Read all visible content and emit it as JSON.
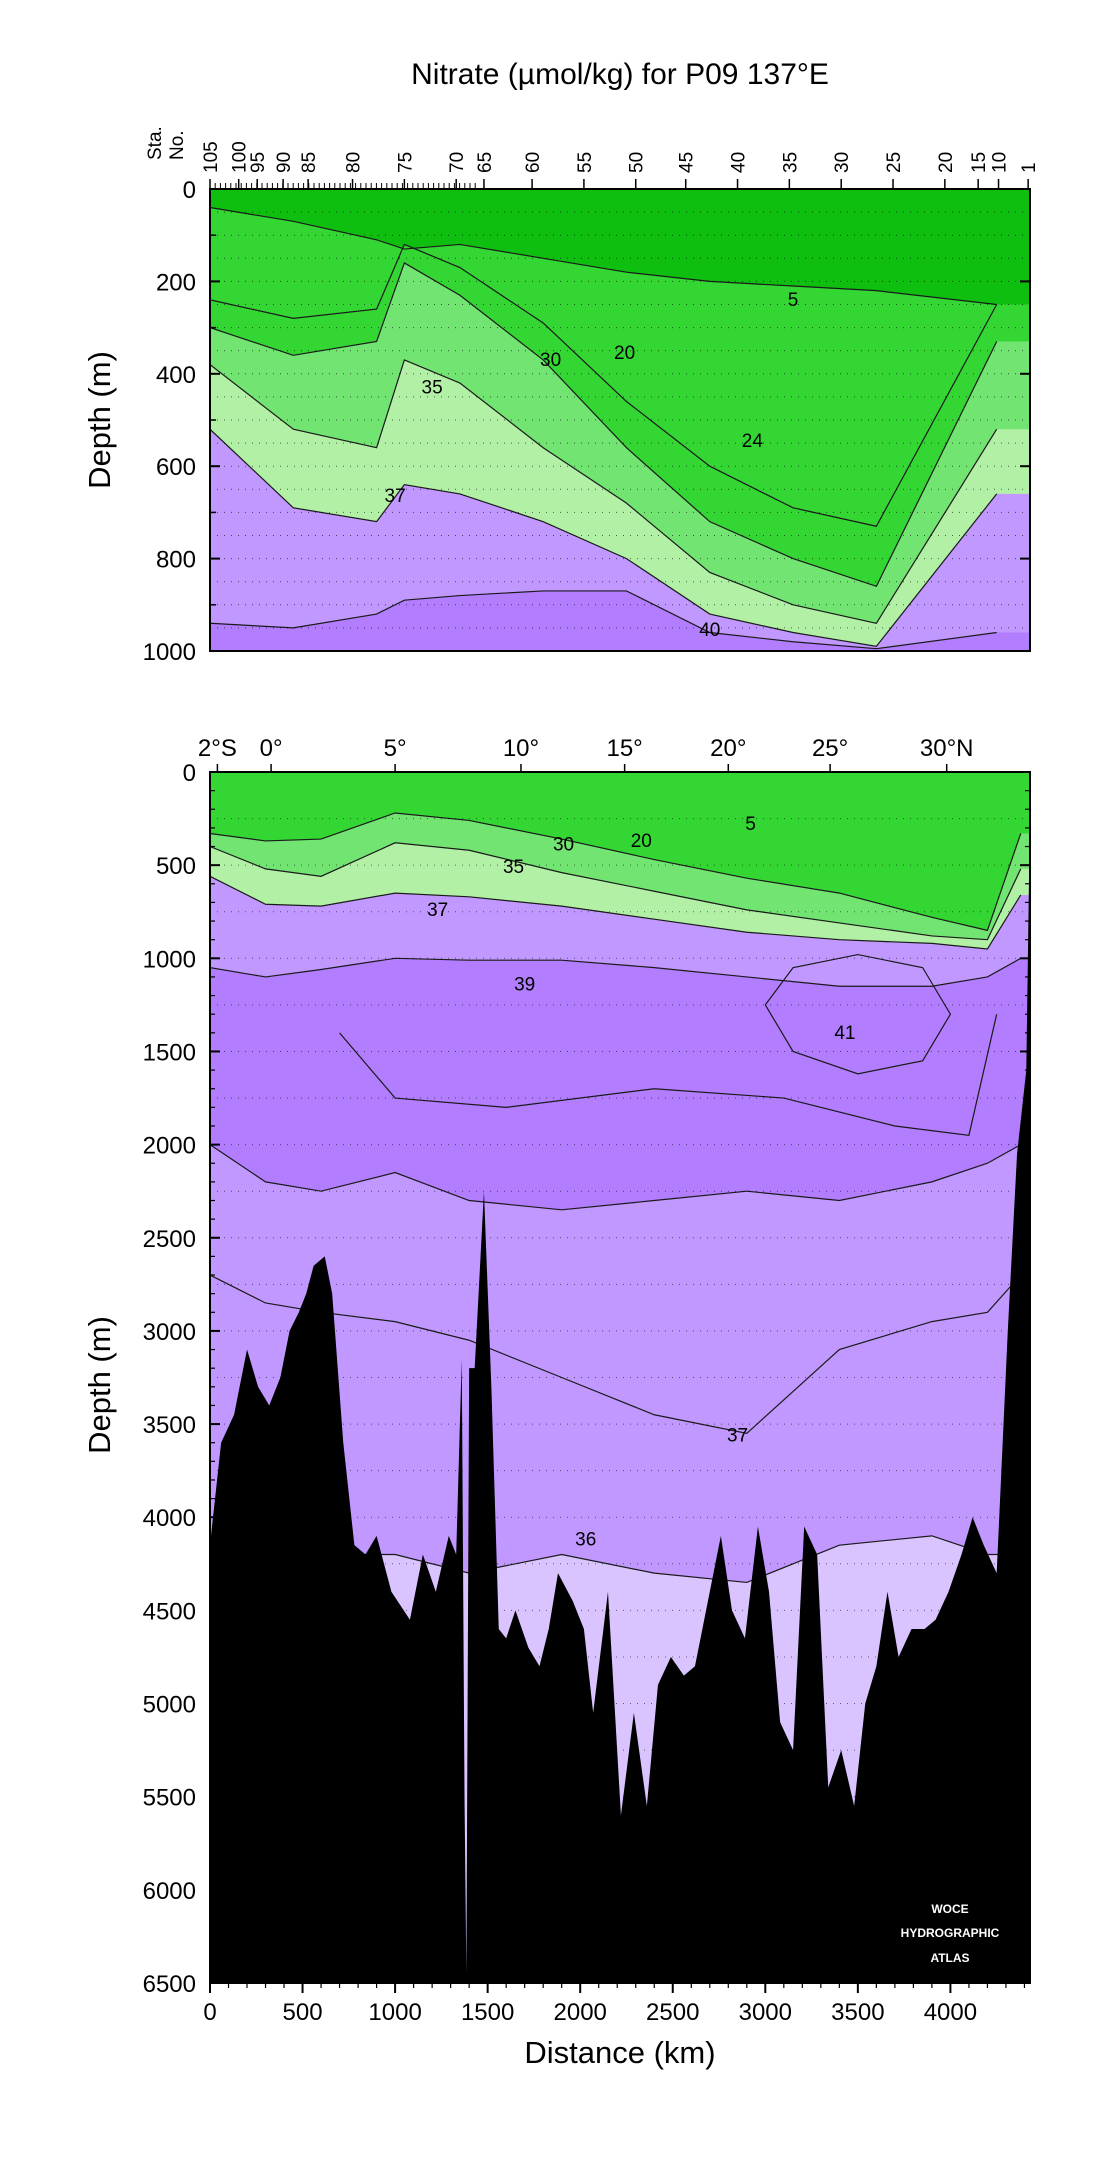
{
  "chart_data": [
    {
      "type": "heatmap",
      "title": "Nitrate (µmol/kg) for P09 137°E",
      "ylabel": "Depth (m)",
      "ylim": [
        1000,
        0
      ],
      "xlim": [
        0,
        4430
      ],
      "y_ticks": [
        "0",
        "200",
        "400",
        "600",
        "800",
        "1000"
      ],
      "station_axis_label": [
        "Sta.",
        "No."
      ],
      "station_ticks": [
        {
          "label": "105",
          "x": 0
        },
        {
          "label": "100",
          "x": 155
        },
        {
          "label": "95",
          "x": 255
        },
        {
          "label": "90",
          "x": 395
        },
        {
          "label": "85",
          "x": 530
        },
        {
          "label": "80",
          "x": 770
        },
        {
          "label": "75",
          "x": 1050
        },
        {
          "label": "70",
          "x": 1330
        },
        {
          "label": "65",
          "x": 1480
        },
        {
          "label": "60",
          "x": 1740
        },
        {
          "label": "55",
          "x": 2020
        },
        {
          "label": "50",
          "x": 2300
        },
        {
          "label": "45",
          "x": 2570
        },
        {
          "label": "40",
          "x": 2850
        },
        {
          "label": "35",
          "x": 3130
        },
        {
          "label": "30",
          "x": 3410
        },
        {
          "label": "25",
          "x": 3690
        },
        {
          "label": "20",
          "x": 3970
        },
        {
          "label": "15",
          "x": 4150
        },
        {
          "label": "10",
          "x": 4260
        },
        {
          "label": "1",
          "x": 4420
        }
      ],
      "contour_levels": [
        1,
        2,
        3,
        4,
        5,
        10,
        15,
        20,
        22,
        24,
        26,
        28,
        30,
        32,
        34,
        35,
        36,
        37,
        38,
        39,
        40,
        41,
        42
      ],
      "isolines": [
        {
          "value": 5,
          "depth": [
            40,
            70,
            110,
            130,
            120,
            150,
            180,
            200,
            210,
            220,
            250
          ]
        },
        {
          "value": 20,
          "depth": [
            240,
            280,
            260,
            120,
            170,
            290,
            460,
            600,
            690,
            730,
            250
          ]
        },
        {
          "value": 30,
          "depth": [
            300,
            360,
            330,
            160,
            230,
            370,
            560,
            720,
            800,
            860,
            330
          ]
        },
        {
          "value": 35,
          "depth": [
            380,
            520,
            560,
            370,
            420,
            560,
            680,
            830,
            900,
            940,
            520
          ]
        },
        {
          "value": 37,
          "depth": [
            520,
            690,
            720,
            640,
            660,
            720,
            800,
            920,
            960,
            990,
            660
          ]
        },
        {
          "value": 40,
          "depth": [
            940,
            950,
            920,
            890,
            880,
            870,
            870,
            960,
            980,
            995,
            960
          ]
        }
      ],
      "isoline_x": [
        0,
        450,
        900,
        1050,
        1350,
        1800,
        2250,
        2700,
        3150,
        3600,
        4250
      ],
      "contour_labels": [
        {
          "text": "5",
          "x": 3150,
          "depth": 240
        },
        {
          "text": "20",
          "x": 2240,
          "depth": 355
        },
        {
          "text": "30",
          "x": 1840,
          "depth": 370
        },
        {
          "text": "35",
          "x": 1200,
          "depth": 430
        },
        {
          "text": "24",
          "x": 2930,
          "depth": 545
        },
        {
          "text": "37",
          "x": 1000,
          "depth": 665
        },
        {
          "text": "40",
          "x": 2700,
          "depth": 955
        }
      ]
    },
    {
      "type": "heatmap",
      "xlabel": "Distance (km)",
      "ylabel": "Depth (m)",
      "xlim": [
        0,
        4430
      ],
      "ylim": [
        6500,
        0
      ],
      "x_ticks": [
        "0",
        "500",
        "1000",
        "1500",
        "2000",
        "2500",
        "3000",
        "3500",
        "4000"
      ],
      "y_ticks": [
        "0",
        "500",
        "1000",
        "1500",
        "2000",
        "2500",
        "3000",
        "3500",
        "4000",
        "4500",
        "5000",
        "5500",
        "6000",
        "6500"
      ],
      "lat_ticks": [
        {
          "label": "2°S",
          "x": 40
        },
        {
          "label": "0°",
          "x": 330
        },
        {
          "label": "5°",
          "x": 1000
        },
        {
          "label": "10°",
          "x": 1680
        },
        {
          "label": "15°",
          "x": 2240
        },
        {
          "label": "20°",
          "x": 2800
        },
        {
          "label": "25°",
          "x": 3350
        },
        {
          "label": "30°N",
          "x": 3980
        }
      ],
      "contour_levels": [
        5,
        10,
        15,
        20,
        25,
        30,
        35,
        36,
        37,
        38,
        39,
        40,
        41,
        42
      ],
      "isolines": [
        {
          "value": 30,
          "depth": [
            330,
            370,
            360,
            220,
            260,
            360,
            470,
            570,
            650,
            780,
            850,
            330
          ]
        },
        {
          "value": 35,
          "depth": [
            400,
            520,
            560,
            380,
            420,
            540,
            640,
            740,
            810,
            880,
            900,
            520
          ]
        },
        {
          "value": 37,
          "depth": [
            560,
            710,
            720,
            650,
            670,
            720,
            790,
            860,
            900,
            920,
            950,
            660
          ]
        },
        {
          "value": 39,
          "depth": [
            1050,
            1100,
            1060,
            1000,
            1010,
            1010,
            1050,
            1100,
            1150,
            1150,
            1100,
            1000
          ]
        },
        {
          "value": 38,
          "depth": [
            2000,
            2200,
            2250,
            2150,
            2300,
            2350,
            2300,
            2250,
            2300,
            2200,
            2100,
            2000
          ]
        },
        {
          "value": 37,
          "depth": [
            2700,
            2850,
            2900,
            2950,
            3050,
            3250,
            3450,
            3550,
            3100,
            2950,
            2900,
            2700
          ]
        },
        {
          "value": 36,
          "depth": [
            4150,
            4150,
            4200,
            4200,
            4300,
            4200,
            4300,
            4350,
            4150,
            4100,
            4200,
            4200
          ]
        }
      ],
      "isoline_x": [
        0,
        300,
        600,
        1000,
        1400,
        1900,
        2400,
        2900,
        3400,
        3900,
        4200,
        4380
      ],
      "inner_contours": [
        {
          "value": 41,
          "x": [
            3000,
            3150,
            3500,
            3850,
            4000,
            3850,
            3500,
            3150,
            3000
          ],
          "depth": [
            1250,
            1050,
            980,
            1050,
            1300,
            1550,
            1620,
            1500,
            1250
          ]
        },
        {
          "value": 40,
          "x": [
            700,
            1000,
            1600,
            2400,
            3100,
            3700,
            4100,
            4250
          ],
          "depth": [
            1400,
            1750,
            1800,
            1700,
            1750,
            1900,
            1950,
            1300
          ]
        }
      ],
      "contour_labels": [
        {
          "text": "5",
          "x": 2920,
          "depth": 280
        },
        {
          "text": "20",
          "x": 2330,
          "depth": 370
        },
        {
          "text": "30",
          "x": 1910,
          "depth": 390
        },
        {
          "text": "35",
          "x": 1640,
          "depth": 510
        },
        {
          "text": "37",
          "x": 1230,
          "depth": 740
        },
        {
          "text": "39",
          "x": 1700,
          "depth": 1140
        },
        {
          "text": "41",
          "x": 3430,
          "depth": 1400
        },
        {
          "text": "37",
          "x": 2850,
          "depth": 3560
        },
        {
          "text": "36",
          "x": 2030,
          "depth": 4120
        }
      ],
      "bottom_topography": {
        "x": [
          0,
          60,
          130,
          200,
          260,
          320,
          380,
          430,
          480,
          520,
          560,
          620,
          660,
          720,
          780,
          840,
          900,
          980,
          1080,
          1150,
          1220,
          1290,
          1330,
          1360,
          1375,
          1385,
          1400,
          1430,
          1480,
          1520,
          1560,
          1600,
          1650,
          1720,
          1780,
          1830,
          1880,
          1960,
          2020,
          2070,
          2150,
          2220,
          2290,
          2360,
          2420,
          2490,
          2560,
          2620,
          2680,
          2760,
          2820,
          2890,
          2960,
          3020,
          3080,
          3150,
          3210,
          3280,
          3340,
          3410,
          3480,
          3540,
          3600,
          3660,
          3720,
          3790,
          3860,
          3920,
          3990,
          4060,
          4120,
          4180,
          4250,
          4310,
          4360,
          4410,
          4430
        ],
        "depth": [
          4150,
          3600,
          3450,
          3100,
          3300,
          3400,
          3250,
          3000,
          2900,
          2800,
          2650,
          2600,
          2800,
          3600,
          4150,
          4200,
          4100,
          4400,
          4550,
          4200,
          4400,
          4100,
          4200,
          3150,
          5500,
          6450,
          3200,
          3200,
          2250,
          3300,
          4600,
          4650,
          4500,
          4700,
          4800,
          4600,
          4300,
          4450,
          4600,
          5050,
          4400,
          5600,
          5050,
          5550,
          4900,
          4750,
          4850,
          4800,
          4500,
          4100,
          4500,
          4650,
          4050,
          4400,
          5100,
          5250,
          4050,
          4200,
          5450,
          5250,
          5550,
          5000,
          4800,
          4400,
          4750,
          4600,
          4600,
          4550,
          4400,
          4200,
          4000,
          4150,
          4300,
          3000,
          2050,
          1600,
          200
        ]
      },
      "watermark": [
        "WOCE",
        "HYDROGRAPHIC",
        "ATLAS"
      ]
    }
  ]
}
